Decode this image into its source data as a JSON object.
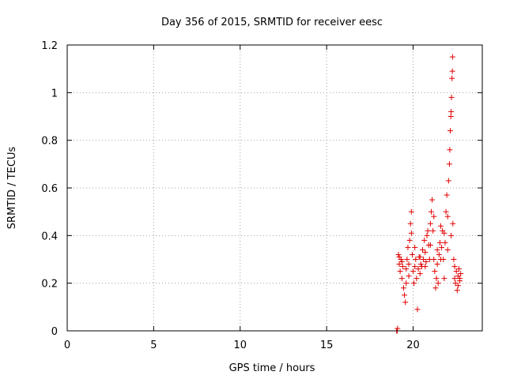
{
  "chart_data": {
    "type": "scatter",
    "title": "Day 356 of 2015, SRMTID for receiver eesc",
    "xlabel": "GPS time / hours",
    "ylabel": "SRMTID / TECUs",
    "xlim": [
      0,
      24
    ],
    "ylim": [
      0,
      1.2
    ],
    "xticks": [
      0,
      5,
      10,
      15,
      20
    ],
    "yticks": [
      0,
      0.2,
      0.4,
      0.6,
      0.8,
      1,
      1.2
    ],
    "ytick_labels": [
      "0",
      "0.2",
      "0.4",
      "0.6",
      "0.8",
      "1",
      "1.2"
    ],
    "grid": true,
    "marker": "+",
    "marker_color": "#e00000",
    "series": [
      {
        "points": [
          [
            19.05,
            0.0
          ],
          [
            19.08,
            0.0
          ],
          [
            19.1,
            0.01
          ],
          [
            19.15,
            0.32
          ],
          [
            19.2,
            0.28
          ],
          [
            19.25,
            0.25
          ],
          [
            19.3,
            0.3
          ],
          [
            19.35,
            0.22
          ],
          [
            19.4,
            0.27
          ],
          [
            19.45,
            0.18
          ],
          [
            19.5,
            0.15
          ],
          [
            19.55,
            0.12
          ],
          [
            19.6,
            0.2
          ],
          [
            19.65,
            0.3
          ],
          [
            19.7,
            0.35
          ],
          [
            19.75,
            0.28
          ],
          [
            19.8,
            0.38
          ],
          [
            19.85,
            0.45
          ],
          [
            19.9,
            0.5
          ],
          [
            19.95,
            0.32
          ],
          [
            20.0,
            0.25
          ],
          [
            20.05,
            0.2
          ],
          [
            20.1,
            0.27
          ],
          [
            20.15,
            0.3
          ],
          [
            20.2,
            0.22
          ],
          [
            20.25,
            0.09
          ],
          [
            20.3,
            0.26
          ],
          [
            20.35,
            0.31
          ],
          [
            20.4,
            0.24
          ],
          [
            20.45,
            0.28
          ],
          [
            20.5,
            0.27
          ],
          [
            20.55,
            0.34
          ],
          [
            20.6,
            0.3
          ],
          [
            20.65,
            0.38
          ],
          [
            20.7,
            0.33
          ],
          [
            20.75,
            0.29
          ],
          [
            20.8,
            0.4
          ],
          [
            20.85,
            0.42
          ],
          [
            20.9,
            0.36
          ],
          [
            20.95,
            0.3
          ],
          [
            21.0,
            0.45
          ],
          [
            21.05,
            0.5
          ],
          [
            21.1,
            0.55
          ],
          [
            21.15,
            0.42
          ],
          [
            21.2,
            0.3
          ],
          [
            21.25,
            0.25
          ],
          [
            21.3,
            0.18
          ],
          [
            21.35,
            0.22
          ],
          [
            21.4,
            0.28
          ],
          [
            21.45,
            0.2
          ],
          [
            21.5,
            0.32
          ],
          [
            21.55,
            0.37
          ],
          [
            21.6,
            0.44
          ],
          [
            21.65,
            0.35
          ],
          [
            21.7,
            0.42
          ],
          [
            21.75,
            0.3
          ],
          [
            21.8,
            0.22
          ],
          [
            21.85,
            0.37
          ],
          [
            21.9,
            0.5
          ],
          [
            21.95,
            0.57
          ],
          [
            22.0,
            0.48
          ],
          [
            22.05,
            0.63
          ],
          [
            22.1,
            0.7
          ],
          [
            22.12,
            0.76
          ],
          [
            22.15,
            0.84
          ],
          [
            22.18,
            0.9
          ],
          [
            22.2,
            0.92
          ],
          [
            22.22,
            0.98
          ],
          [
            22.25,
            1.06
          ],
          [
            22.27,
            1.09
          ],
          [
            22.28,
            1.15
          ],
          [
            22.3,
            0.45
          ],
          [
            22.35,
            0.3
          ],
          [
            22.4,
            0.22
          ],
          [
            22.45,
            0.2
          ],
          [
            22.5,
            0.25
          ],
          [
            22.55,
            0.17
          ],
          [
            22.6,
            0.23
          ],
          [
            22.65,
            0.26
          ],
          [
            22.7,
            0.21
          ],
          [
            22.75,
            0.24
          ],
          [
            19.2,
            0.31
          ],
          [
            19.35,
            0.29
          ],
          [
            19.6,
            0.26
          ],
          [
            19.75,
            0.23
          ],
          [
            19.9,
            0.41
          ],
          [
            20.1,
            0.35
          ],
          [
            20.4,
            0.31
          ],
          [
            20.7,
            0.27
          ],
          [
            21.0,
            0.36
          ],
          [
            21.2,
            0.48
          ],
          [
            21.4,
            0.34
          ],
          [
            21.6,
            0.3
          ],
          [
            21.8,
            0.41
          ],
          [
            22.0,
            0.34
          ],
          [
            22.2,
            0.4
          ],
          [
            22.4,
            0.27
          ],
          [
            22.6,
            0.19
          ],
          [
            22.7,
            0.22
          ]
        ]
      }
    ]
  }
}
